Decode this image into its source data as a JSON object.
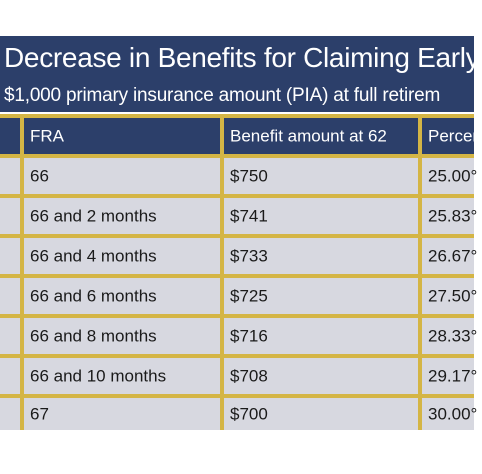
{
  "title": "Decrease in Benefits for Claiming Early",
  "subtitle": "$1,000 primary insurance amount (PIA) at full retirem",
  "table": {
    "headers": [
      "FRA",
      "Benefit amount at 62",
      "Percen"
    ],
    "rows": [
      [
        "66",
        "$750",
        "25.00°"
      ],
      [
        "66 and 2 months",
        "$741",
        "25.83°"
      ],
      [
        "66 and 4 months",
        "$733",
        "26.67°"
      ],
      [
        "66 and 6 months",
        "$725",
        "27.50°"
      ],
      [
        "66 and 8 months",
        "$716",
        "28.33°"
      ],
      [
        "66 and 10 months",
        "$708",
        "29.17°"
      ],
      [
        "67",
        "$700",
        "30.00°"
      ]
    ]
  },
  "colors": {
    "header_bg": "#2c3f6a",
    "border": "#d4b545",
    "row_bg": "#d7d8e0"
  }
}
